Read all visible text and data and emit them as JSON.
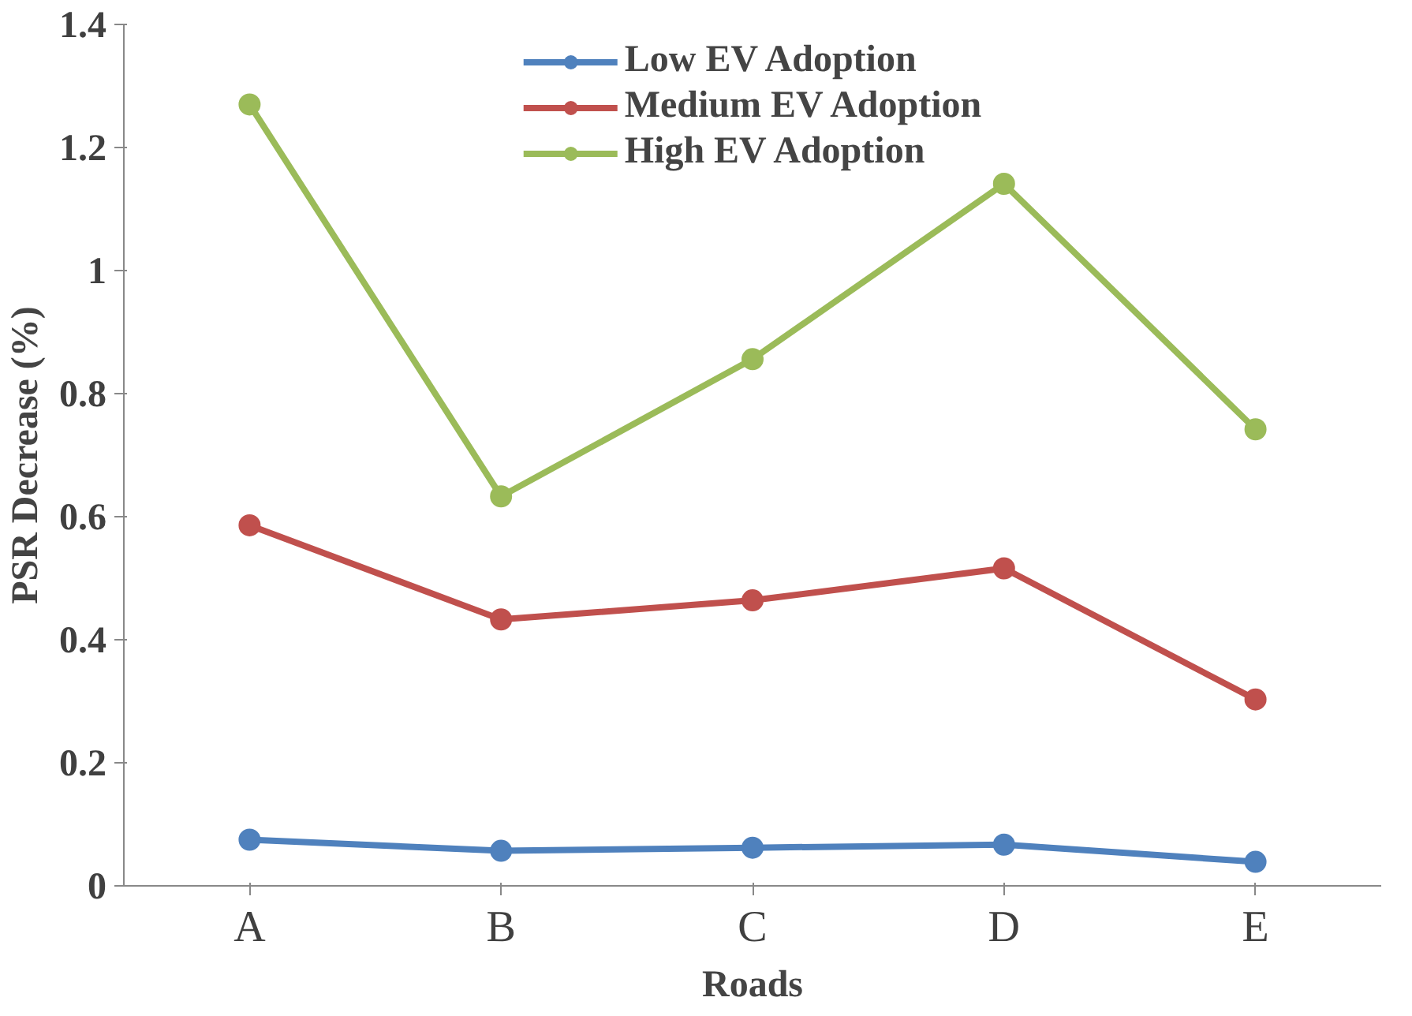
{
  "chart_data": {
    "type": "line",
    "xlabel": "Roads",
    "ylabel": "PSR Decrease (%)",
    "categories": [
      "A",
      "B",
      "C",
      "D",
      "E"
    ],
    "series": [
      {
        "name": "Low EV Adoption",
        "color": "#4f81bd",
        "values": [
          0.075,
          0.057,
          0.062,
          0.067,
          0.039
        ]
      },
      {
        "name": "Medium EV Adoption",
        "color": "#c0504d",
        "values": [
          0.586,
          0.433,
          0.464,
          0.516,
          0.303
        ]
      },
      {
        "name": "High EV Adoption",
        "color": "#9bbb59",
        "values": [
          1.27,
          0.633,
          0.856,
          1.141,
          0.742
        ]
      }
    ],
    "ylim": [
      0,
      1.4
    ],
    "yticks": [
      0,
      0.2,
      0.4,
      0.6,
      0.8,
      1,
      1.2,
      1.4
    ],
    "grid": false,
    "legend": "top",
    "marker": "circle",
    "line_style": "solid"
  }
}
